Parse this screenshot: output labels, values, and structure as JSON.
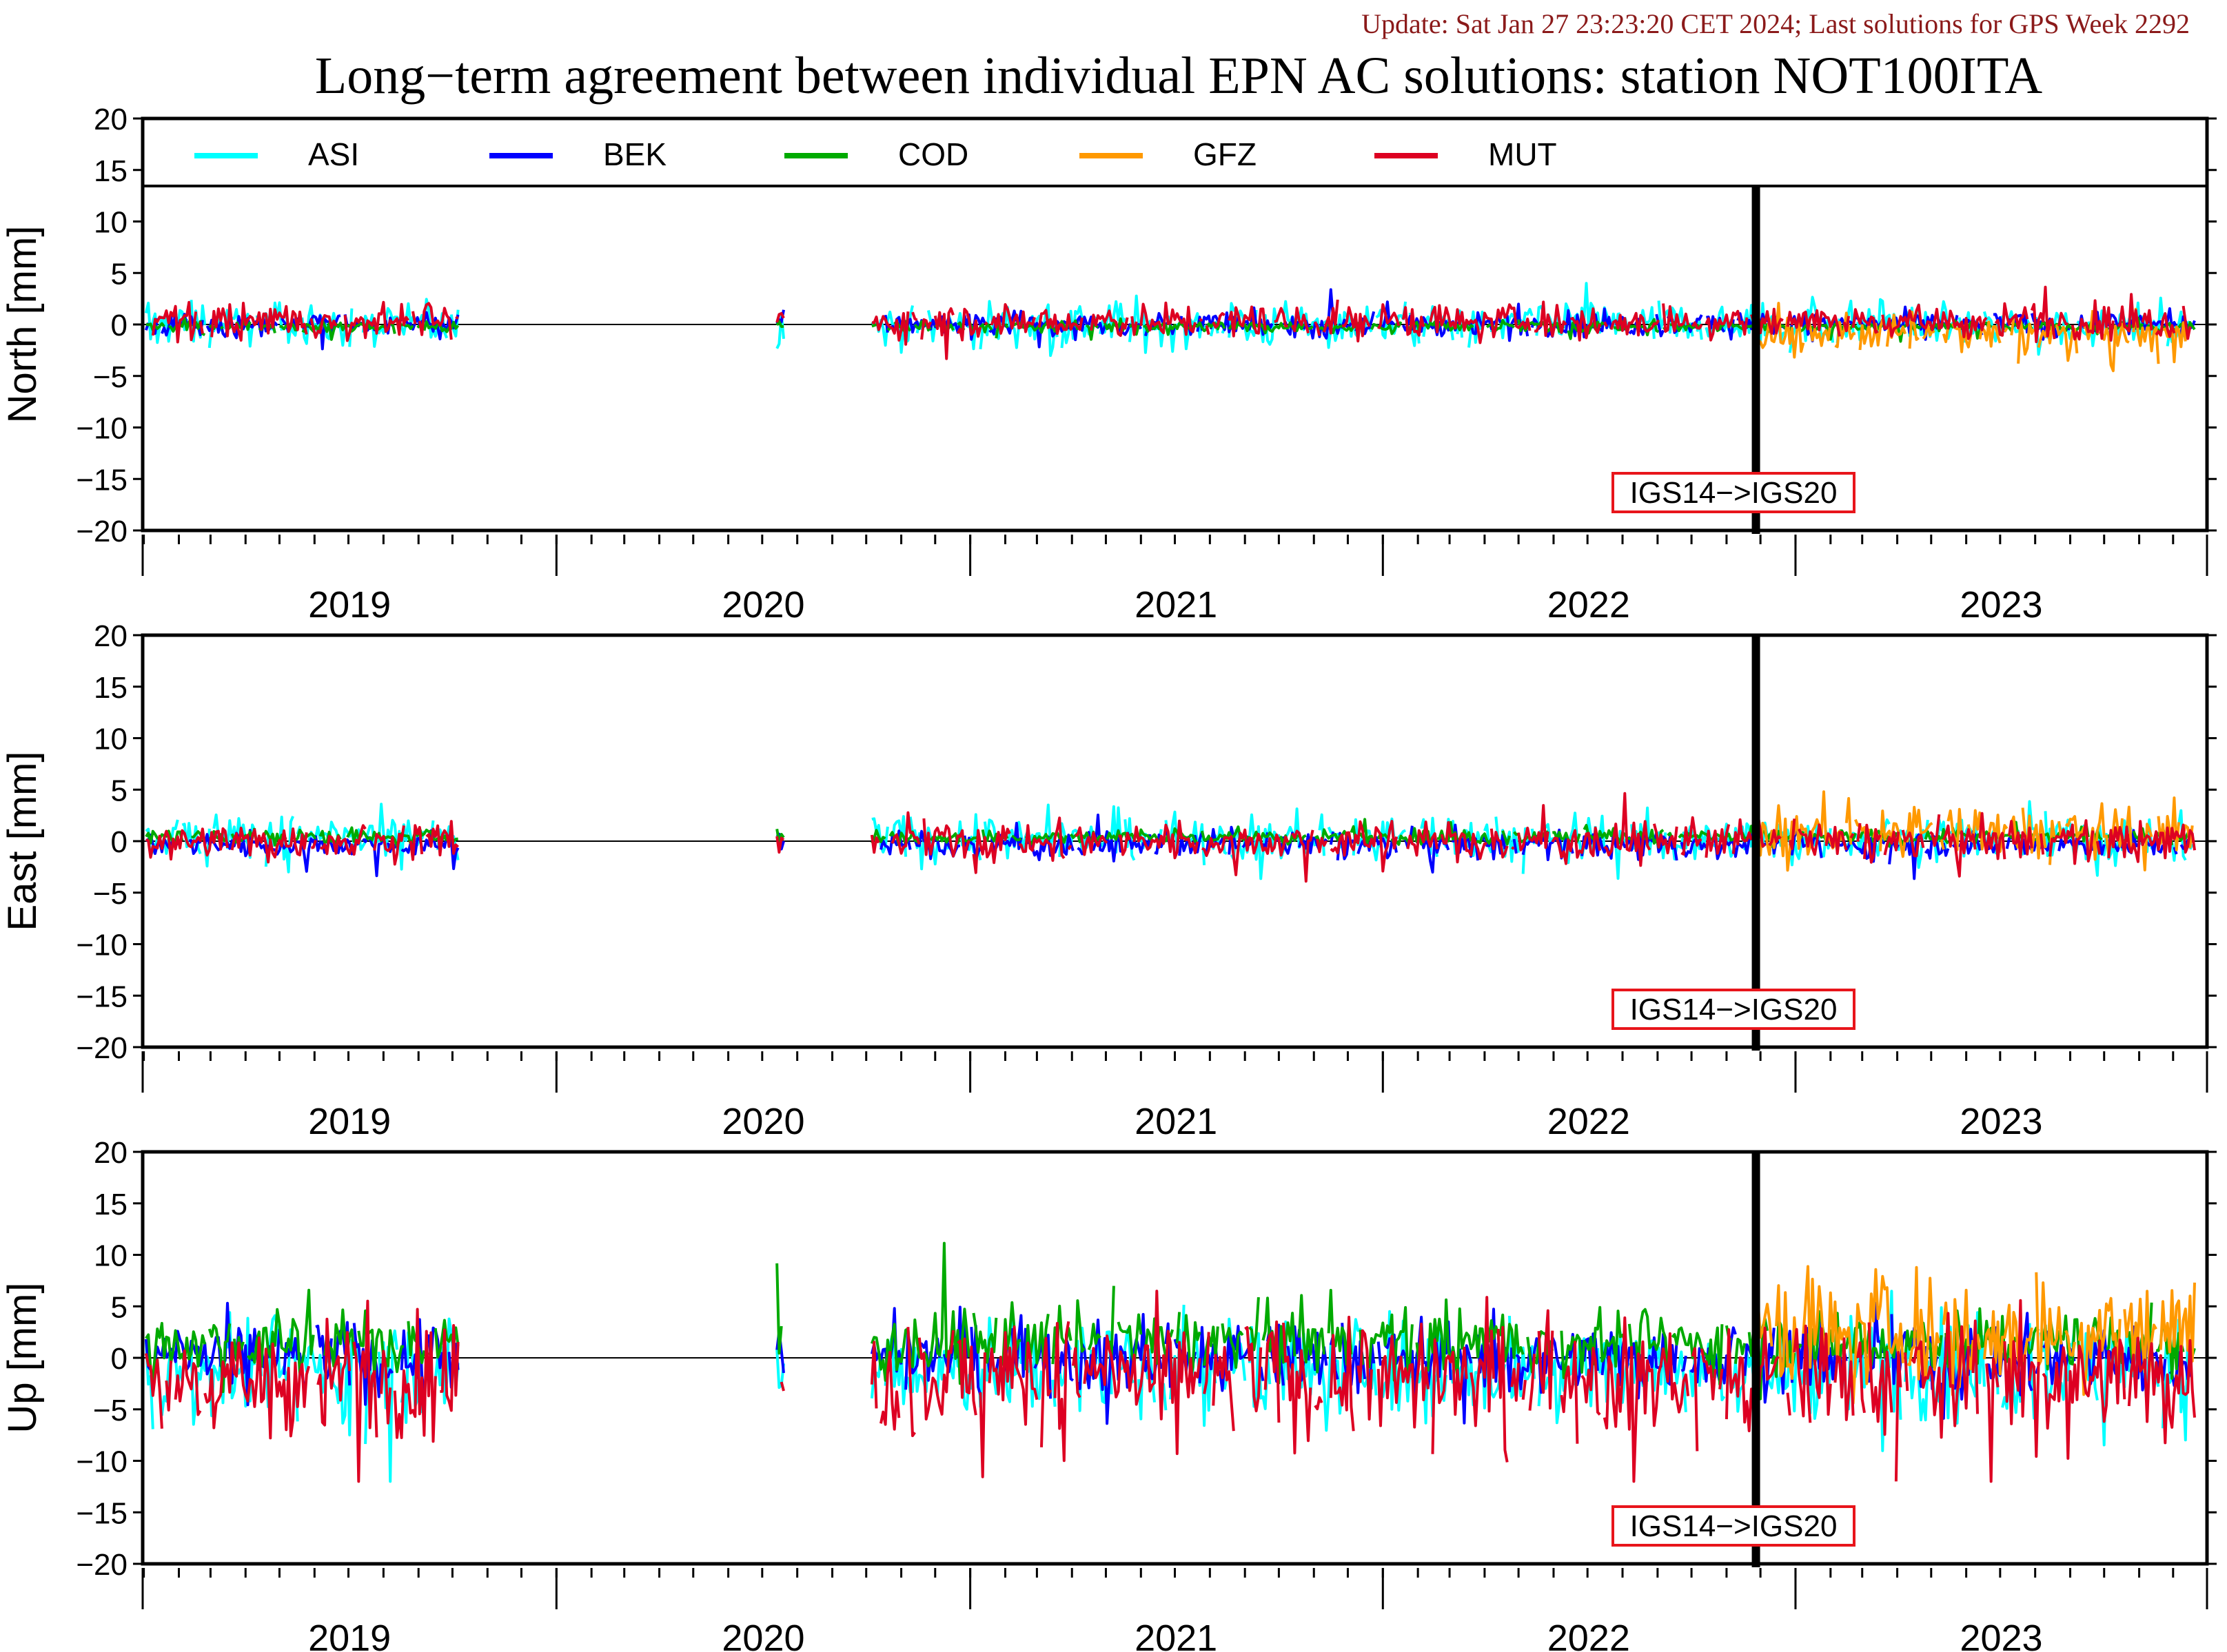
{
  "update_text": "Update: Sat Jan 27 23:23:20 CET 2024; Last solutions for GPS Week 2292",
  "title": "Long−term agreement between individual EPN AC solutions: station NOT100ITA",
  "chart_data": {
    "type": "line",
    "station": "NOT100ITA",
    "x_start": "2018-12-31",
    "x_end": "2023-12-31",
    "x_ticks_years": [
      "2019",
      "2020",
      "2021",
      "2022",
      "2023"
    ],
    "ylim": [
      -20,
      20
    ],
    "y_ticks": [
      -20,
      -15,
      -10,
      -5,
      0,
      5,
      10,
      15,
      20
    ],
    "y_tick_labels": [
      "−20",
      "−15",
      "−10",
      "−5",
      "0",
      "5",
      "10",
      "15",
      "20"
    ],
    "reference_change": {
      "date": "2022-11-27",
      "label": "IGS14−>IGS20"
    },
    "legend": {
      "placement": "top",
      "entries": [
        {
          "name": "ASI",
          "color": "#00ffff"
        },
        {
          "name": "BEK",
          "color": "#0000ff"
        },
        {
          "name": "COD",
          "color": "#00aa00"
        },
        {
          "name": "GFZ",
          "color": "#ff9900"
        },
        {
          "name": "MUT",
          "color": "#dd0022"
        }
      ]
    },
    "panels": [
      {
        "ylabel": "North [mm]",
        "series_amplitude_mm": {
          "ASI": 1.5,
          "BEK": 0.8,
          "COD": 0.4,
          "GFZ": 1.2,
          "MUT": 1.2
        },
        "series_offset_mm": {
          "ASI": 0,
          "BEK": 0,
          "COD": -0.2,
          "GFZ": -1.0,
          "MUT": 0.3
        },
        "peak_range_mm": [
          -4.5,
          4.0
        ]
      },
      {
        "ylabel": "East [mm]",
        "series_amplitude_mm": {
          "ASI": 1.6,
          "BEK": 0.9,
          "COD": 0.5,
          "GFZ": 1.8,
          "MUT": 1.3
        },
        "series_offset_mm": {
          "ASI": 0.2,
          "BEK": -0.3,
          "COD": 0.4,
          "GFZ": 0.8,
          "MUT": 0
        },
        "peak_range_mm": [
          -5,
          5
        ]
      },
      {
        "ylabel": "Up [mm]",
        "series_amplitude_mm": {
          "ASI": 3.5,
          "BEK": 2.5,
          "COD": 2.2,
          "GFZ": 4.0,
          "MUT": 4.0
        },
        "series_offset_mm": {
          "ASI": -1.0,
          "BEK": 0,
          "COD": 1.5,
          "GFZ": 2.5,
          "MUT": -2.0
        },
        "peak_range_mm": [
          -12,
          13
        ]
      }
    ],
    "data_gaps": [
      [
        "2019-10-07",
        "2020-07-12"
      ],
      [
        "2020-07-22",
        "2020-10-04"
      ]
    ]
  }
}
